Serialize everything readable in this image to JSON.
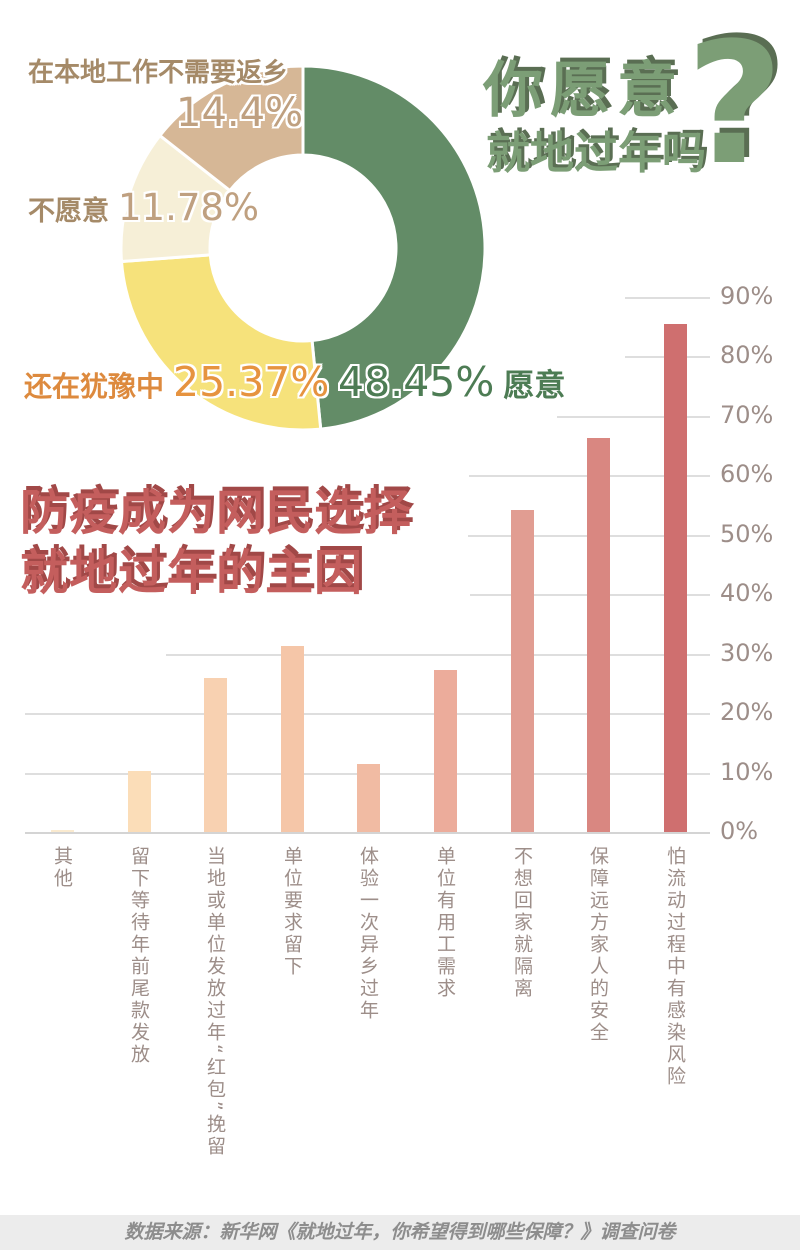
{
  "page": {
    "title_line1": "你愿意",
    "title_line2": "就地过年吗",
    "title_qmark": "?",
    "headline_line1": "防疫成为网民选择",
    "headline_line2": "就地过年的主因",
    "source_note": "数据来源：新华网《就地过年，你希望得到哪些保障？》调查问卷"
  },
  "colors": {
    "title_green": "#7c9e76",
    "title_green_shadow": "#5a6e53",
    "headline_red": "#c45e5d",
    "headline_red_shadow": "#a14847",
    "axis_text": "#9d8e89",
    "gridline": "#dedede",
    "footer_bg": "#ececec",
    "footer_text": "#8d8d8d",
    "donut_name_tan": "#a58a68",
    "donut_pct_tan": "#bfa080",
    "donut_name_orange": "#dd8a3e",
    "donut_pct_orange": "#e6933f",
    "donut_green_text": "#4d7c54"
  },
  "chart_data": [
    {
      "type": "pie",
      "subtype": "donut",
      "title": "你愿意就地过年吗?",
      "start_angle_deg": 0,
      "direction": "clockwise",
      "slices": [
        {
          "label": "愿意",
          "value": 48.45,
          "pct_text": "48.45%",
          "color": "#638c67"
        },
        {
          "label": "还在犹豫中",
          "value": 25.37,
          "pct_text": "25.37%",
          "color": "#f6e27b"
        },
        {
          "label": "不愿意",
          "value": 11.78,
          "pct_text": "11.78%",
          "color": "#f6efd7"
        },
        {
          "label": "在本地工作不需要返乡",
          "value": 14.4,
          "pct_text": "14.4%",
          "color": "#d6b796"
        }
      ]
    },
    {
      "type": "bar",
      "title": "防疫成为网民选择就地过年的主因",
      "categories": [
        "其他",
        "留下等待年前尾款发放",
        "当地或单位发放过年“红包”挽留",
        "单位要求留下",
        "体验一次异乡过年",
        "单位有用工需求",
        "不想回家就隔离",
        "保障远方家人的安全",
        "怕流动过程中有感染风险"
      ],
      "values": [
        0.4,
        10.3,
        25.8,
        31.2,
        11.5,
        27.3,
        54.1,
        66.3,
        85.3
      ],
      "bar_colors": [
        "#faeacf",
        "#fbddb8",
        "#f8d1b1",
        "#f5c6a8",
        "#f1bba3",
        "#ecac9b",
        "#e19d92",
        "#d98781",
        "#cf6f6f"
      ],
      "ylim": [
        0,
        90
      ],
      "yticks": [
        0,
        10,
        20,
        30,
        40,
        50,
        60,
        70,
        80,
        90
      ],
      "ytick_labels": [
        "0%",
        "10%",
        "20%",
        "30%",
        "40%",
        "50%",
        "60%",
        "70%",
        "80%",
        "90%"
      ],
      "grid": true,
      "ytick_side": "right",
      "xlabel": "",
      "ylabel": ""
    }
  ]
}
